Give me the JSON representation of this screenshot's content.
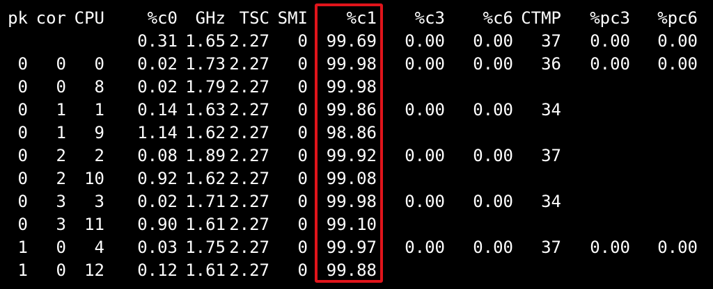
{
  "terminal": {
    "headers": [
      "pk",
      "cor",
      "CPU",
      "%c0",
      "GHz",
      "TSC",
      "SMI",
      "%c1",
      "%c3",
      "%c6",
      "CTMP",
      "%pc3",
      "%pc6"
    ],
    "rows": [
      [
        "",
        "",
        "",
        "0.31",
        "1.65",
        "2.27",
        "0",
        "99.69",
        "0.00",
        "0.00",
        "37",
        "0.00",
        "0.00"
      ],
      [
        "0",
        "0",
        "0",
        "0.02",
        "1.73",
        "2.27",
        "0",
        "99.98",
        "0.00",
        "0.00",
        "36",
        "0.00",
        "0.00"
      ],
      [
        "0",
        "0",
        "8",
        "0.02",
        "1.79",
        "2.27",
        "0",
        "99.98",
        "",
        "",
        "",
        "",
        ""
      ],
      [
        "0",
        "1",
        "1",
        "0.14",
        "1.63",
        "2.27",
        "0",
        "99.86",
        "0.00",
        "0.00",
        "34",
        "",
        ""
      ],
      [
        "0",
        "1",
        "9",
        "1.14",
        "1.62",
        "2.27",
        "0",
        "98.86",
        "",
        "",
        "",
        "",
        ""
      ],
      [
        "0",
        "2",
        "2",
        "0.08",
        "1.89",
        "2.27",
        "0",
        "99.92",
        "0.00",
        "0.00",
        "37",
        "",
        ""
      ],
      [
        "0",
        "2",
        "10",
        "0.92",
        "1.62",
        "2.27",
        "0",
        "99.08",
        "",
        "",
        "",
        "",
        ""
      ],
      [
        "0",
        "3",
        "3",
        "0.02",
        "1.71",
        "2.27",
        "0",
        "99.98",
        "0.00",
        "0.00",
        "34",
        "",
        ""
      ],
      [
        "0",
        "3",
        "11",
        "0.90",
        "1.61",
        "2.27",
        "0",
        "99.10",
        "",
        "",
        "",
        "",
        ""
      ],
      [
        "1",
        "0",
        "4",
        "0.03",
        "1.75",
        "2.27",
        "0",
        "99.97",
        "0.00",
        "0.00",
        "37",
        "0.00",
        "0.00"
      ],
      [
        "1",
        "0",
        "12",
        "0.12",
        "1.61",
        "2.27",
        "0",
        "99.88",
        "",
        "",
        "",
        "",
        ""
      ]
    ]
  },
  "colors": {
    "background": "#000000",
    "text": "#ffffff",
    "highlight": "#e0141b"
  }
}
